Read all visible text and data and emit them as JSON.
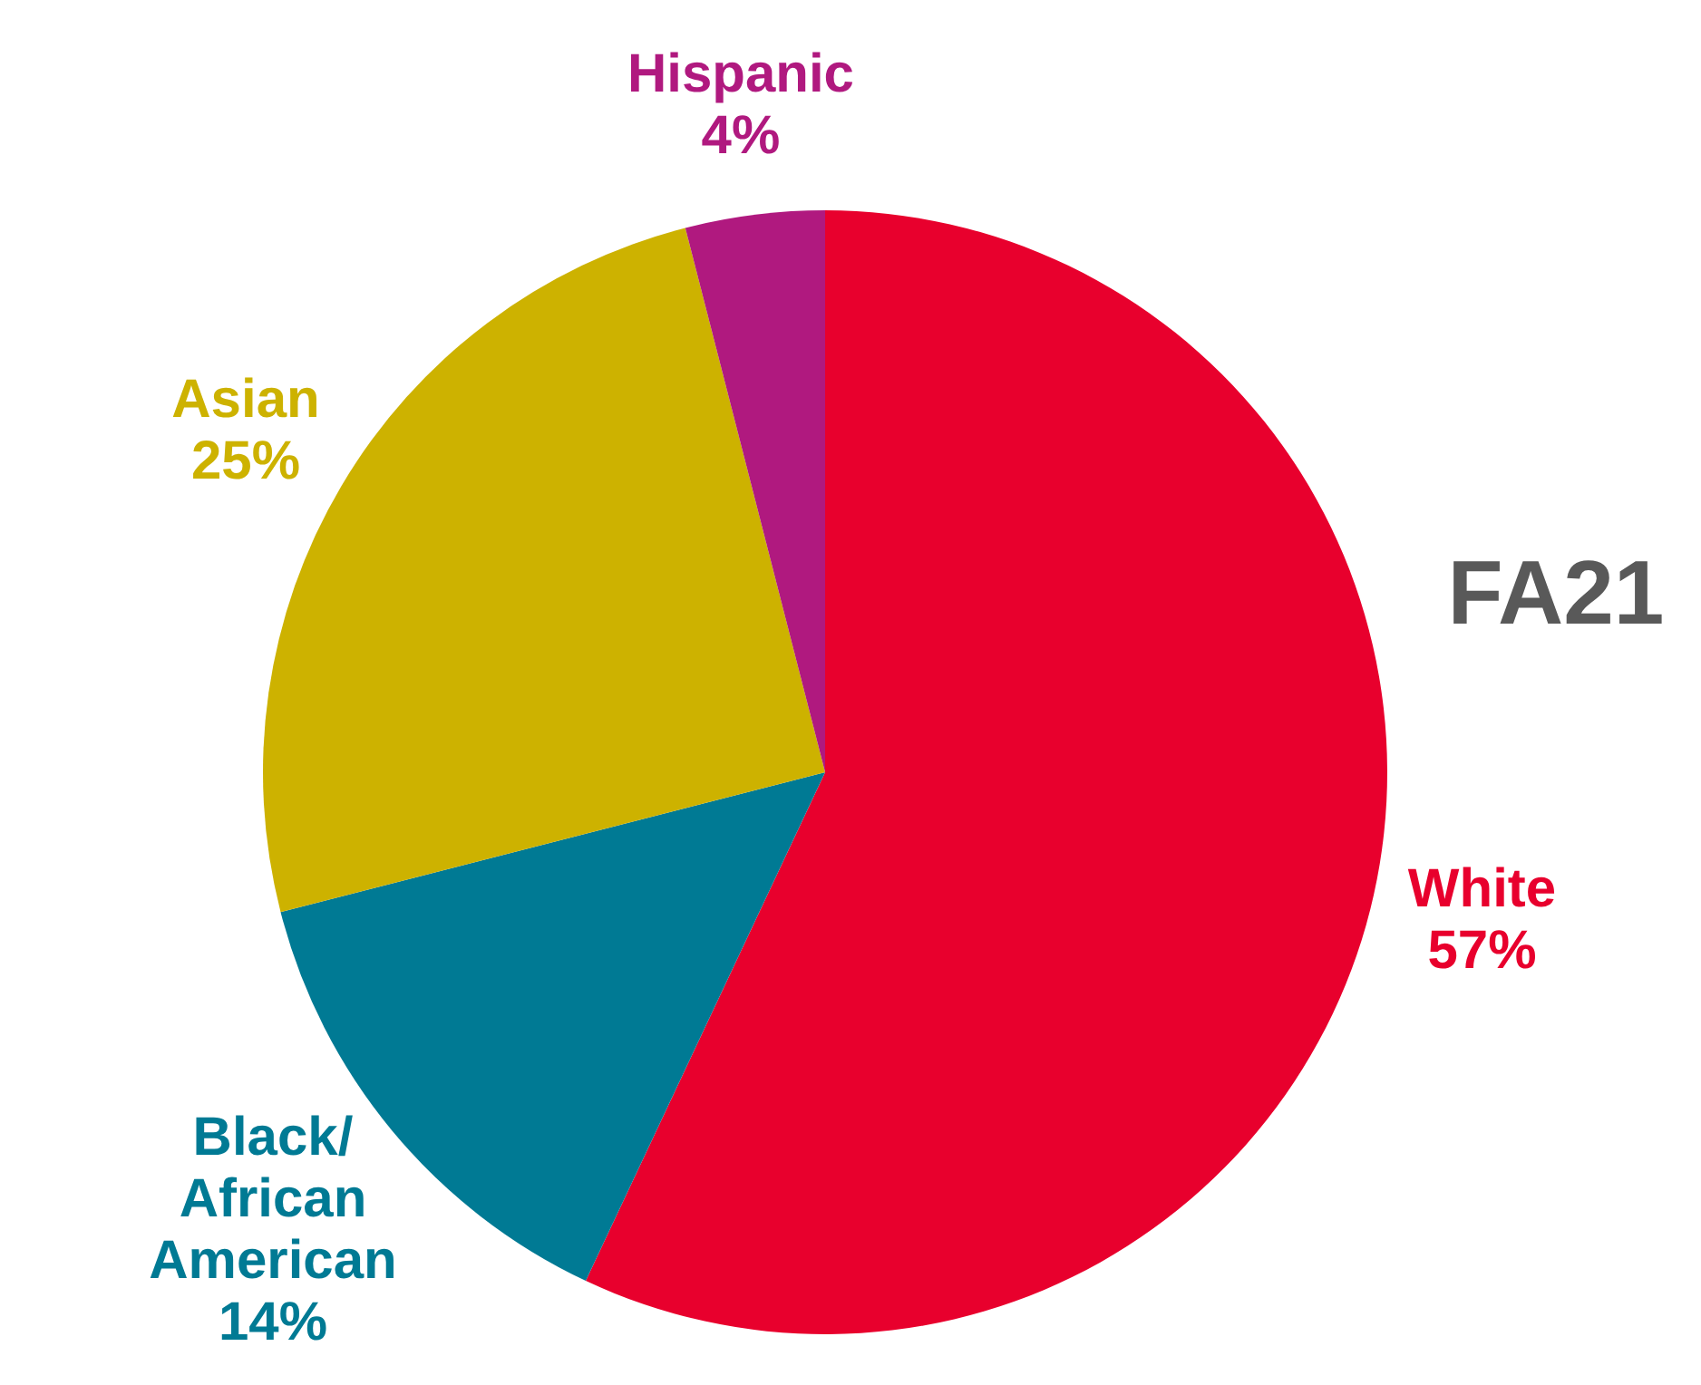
{
  "chart_data": {
    "type": "pie",
    "title": "FA21",
    "categories": [
      "White",
      "Black/ African American",
      "Asian",
      "Hispanic"
    ],
    "values": [
      57,
      14,
      25,
      4
    ],
    "value_labels": [
      "57%",
      "14%",
      "25%",
      "4%"
    ],
    "colors": [
      "#e8002d",
      "#007a94",
      "#cdb200",
      "#b0197f"
    ]
  }
}
